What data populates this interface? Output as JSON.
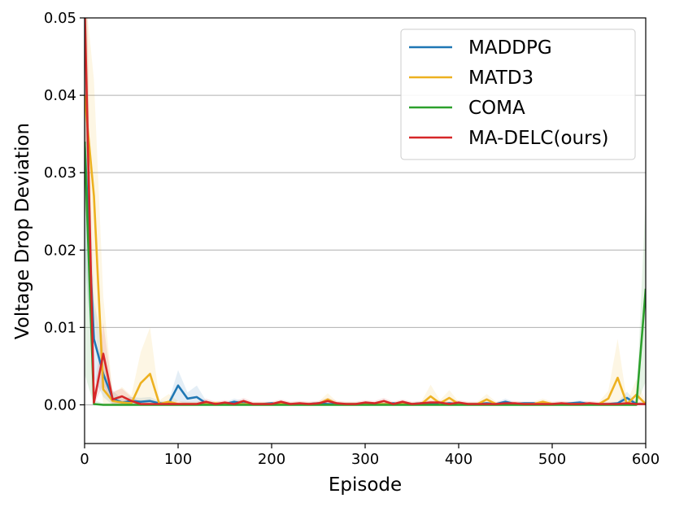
{
  "chart_data": {
    "type": "line",
    "title": "",
    "xlabel": "Episode",
    "ylabel": "Voltage Drop Deviation",
    "xlim": [
      0,
      600
    ],
    "ylim": [
      -0.005,
      0.05
    ],
    "xticks": [
      0,
      100,
      200,
      300,
      400,
      500,
      600
    ],
    "xtick_labels": [
      "0",
      "100",
      "200",
      "300",
      "400",
      "500",
      "600"
    ],
    "yticks": [
      0.0,
      0.01,
      0.02,
      0.03,
      0.04,
      0.05
    ],
    "ytick_labels": [
      "0.00",
      "0.01",
      "0.02",
      "0.03",
      "0.04",
      "0.05"
    ],
    "grid": "horizontal",
    "legend_position": "top-right",
    "x": [
      0,
      10,
      20,
      30,
      40,
      50,
      60,
      70,
      80,
      90,
      100,
      110,
      120,
      130,
      140,
      150,
      160,
      170,
      180,
      190,
      200,
      210,
      220,
      230,
      240,
      250,
      260,
      270,
      280,
      290,
      300,
      310,
      320,
      330,
      340,
      350,
      360,
      370,
      380,
      390,
      400,
      410,
      420,
      430,
      440,
      450,
      460,
      470,
      480,
      490,
      500,
      510,
      520,
      530,
      540,
      550,
      560,
      570,
      580,
      590,
      600
    ],
    "series": [
      {
        "name": "MADDPG",
        "color": "#1f77b4",
        "values": [
          0.034,
          0.0085,
          0.004,
          0.0008,
          0.0003,
          0.0005,
          0.0004,
          0.0005,
          0.0002,
          0.0002,
          0.0025,
          0.0008,
          0.001,
          0.0002,
          0.0001,
          0.0001,
          0.0004,
          0.0002,
          0.0001,
          0.0001,
          0.0002,
          0.0001,
          0.0001,
          0.0001,
          0.0001,
          0.0002,
          0.0001,
          0.0001,
          0.0001,
          0.0001,
          0.0002,
          0.0001,
          0.0001,
          0.0002,
          0.0001,
          0.0001,
          0.0002,
          0.0001,
          0.0001,
          0.0002,
          0.0001,
          0.0001,
          0.0001,
          0.0002,
          0.0001,
          0.0004,
          0.0001,
          0.0002,
          0.0002,
          0.0001,
          0.0001,
          0.0001,
          0.0002,
          0.0003,
          0.0001,
          0.0001,
          0.0001,
          0.0002,
          0.0009,
          0.0001,
          0.0001
        ],
        "band": [
          0.015,
          0.005,
          0.003,
          0.001,
          0.0005,
          0.0005,
          0.0005,
          0.0005,
          0.0003,
          0.0003,
          0.002,
          0.0008,
          0.0015,
          0.0003,
          0.0002,
          0.0002,
          0.0004,
          0.0003,
          0.0002,
          0.0002,
          0.0002,
          0.0002,
          0.0002,
          0.0002,
          0.0002,
          0.0002,
          0.0002,
          0.0002,
          0.0002,
          0.0002,
          0.0002,
          0.0002,
          0.0002,
          0.0002,
          0.0002,
          0.0002,
          0.0002,
          0.0002,
          0.0002,
          0.0002,
          0.0002,
          0.0002,
          0.0002,
          0.0002,
          0.0002,
          0.0004,
          0.0002,
          0.0002,
          0.0002,
          0.0002,
          0.0002,
          0.0002,
          0.0002,
          0.0003,
          0.0002,
          0.0002,
          0.0002,
          0.0002,
          0.0008,
          0.0002,
          0.0002
        ]
      },
      {
        "name": "MATD3",
        "color": "#edb120",
        "values": [
          0.04,
          0.027,
          0.002,
          0.0005,
          0.0003,
          0.0002,
          0.0028,
          0.004,
          0.0001,
          0.0004,
          0.0001,
          0.0001,
          0.0001,
          0.0001,
          0.0002,
          0.0001,
          0.0001,
          0.0001,
          0.0001,
          0.0001,
          0.0001,
          0.0002,
          0.0001,
          0.0001,
          0.0001,
          0.0001,
          0.0007,
          0.0001,
          0.0001,
          0.0001,
          0.0001,
          0.0001,
          0.0001,
          0.0001,
          0.0001,
          0.0001,
          0.0001,
          0.0011,
          0.0002,
          0.0009,
          0.0001,
          0.0001,
          0.0001,
          0.0007,
          0.0001,
          0.0001,
          0.0001,
          0.0001,
          0.0001,
          0.0004,
          0.0001,
          0.0001,
          0.0001,
          0.0001,
          0.0001,
          0.0001,
          0.0008,
          0.0035,
          0.0001,
          0.0013,
          0.0001
        ],
        "band": [
          0.014,
          0.015,
          0.012,
          0.001,
          0.002,
          0.001,
          0.004,
          0.006,
          0.0005,
          0.001,
          0.0004,
          0.0003,
          0.0003,
          0.0003,
          0.0003,
          0.0003,
          0.0003,
          0.0003,
          0.0003,
          0.0003,
          0.0003,
          0.0003,
          0.0003,
          0.0003,
          0.0003,
          0.0003,
          0.0008,
          0.0003,
          0.0003,
          0.0003,
          0.0003,
          0.0003,
          0.0003,
          0.0003,
          0.0003,
          0.0003,
          0.0003,
          0.0015,
          0.0004,
          0.001,
          0.0003,
          0.0003,
          0.0003,
          0.0007,
          0.0003,
          0.0003,
          0.0003,
          0.0003,
          0.0003,
          0.0004,
          0.0003,
          0.0003,
          0.0003,
          0.0003,
          0.0003,
          0.0003,
          0.001,
          0.005,
          0.0003,
          0.002,
          0.0003
        ]
      },
      {
        "name": "COMA",
        "color": "#2ca02c",
        "values": [
          0.034,
          0.0001,
          0.0,
          0.0,
          0.0,
          0.0,
          0.0,
          0.0,
          0.0,
          0.0,
          0.0,
          0.0,
          0.0,
          0.0,
          0.0,
          0.0,
          0.0,
          0.0,
          0.0,
          0.0,
          0.0,
          0.0,
          0.0,
          0.0,
          0.0,
          0.0,
          0.0,
          0.0,
          0.0,
          0.0,
          0.0,
          0.0,
          0.0,
          0.0,
          0.0,
          0.0,
          0.0,
          0.0,
          0.0,
          0.0,
          0.0,
          0.0,
          0.0,
          0.0,
          0.0,
          0.0,
          0.0,
          0.0,
          0.0,
          0.0,
          0.0,
          0.0,
          0.0,
          0.0,
          0.0,
          0.0,
          0.0,
          0.0,
          0.0,
          0.0,
          0.015
        ],
        "band": [
          0.03,
          0.0005,
          0.0002,
          0.0002,
          0.0002,
          0.0002,
          0.0002,
          0.0002,
          0.0002,
          0.0002,
          0.0002,
          0.0002,
          0.0002,
          0.0002,
          0.0002,
          0.0002,
          0.0002,
          0.0002,
          0.0002,
          0.0002,
          0.0002,
          0.0002,
          0.0002,
          0.0002,
          0.0002,
          0.0002,
          0.0002,
          0.0002,
          0.0002,
          0.0002,
          0.0002,
          0.0002,
          0.0002,
          0.0002,
          0.0002,
          0.0002,
          0.0002,
          0.0002,
          0.0002,
          0.0002,
          0.0002,
          0.0002,
          0.0002,
          0.0002,
          0.0002,
          0.0002,
          0.0002,
          0.0002,
          0.0002,
          0.0002,
          0.0002,
          0.0002,
          0.0002,
          0.0002,
          0.0002,
          0.0002,
          0.0002,
          0.0002,
          0.0002,
          0.0002,
          0.012
        ]
      },
      {
        "name": "MA-DELC(ours)",
        "color": "#d62728",
        "values": [
          0.052,
          0.0003,
          0.0066,
          0.0007,
          0.0011,
          0.0005,
          0.0001,
          0.0001,
          0.0001,
          0.0001,
          0.0001,
          0.0001,
          0.0001,
          0.0004,
          0.0001,
          0.0003,
          0.0001,
          0.0005,
          0.0001,
          0.0001,
          0.0001,
          0.0004,
          0.0001,
          0.0002,
          0.0001,
          0.0002,
          0.0005,
          0.0002,
          0.0001,
          0.0001,
          0.0003,
          0.0002,
          0.0005,
          0.0001,
          0.0004,
          0.0001,
          0.0002,
          0.0003,
          0.0003,
          0.0001,
          0.0003,
          0.0001,
          0.0001,
          0.0001,
          0.0001,
          0.0002,
          0.0002,
          0.0001,
          0.0001,
          0.0001,
          0.0001,
          0.0002,
          0.0001,
          0.0001,
          0.0002,
          0.0001,
          0.0001,
          0.0001,
          0.0002,
          0.0001,
          0.0001
        ],
        "band": [
          0.02,
          0.001,
          0.004,
          0.001,
          0.001,
          0.0005,
          0.0003,
          0.0003,
          0.0003,
          0.0003,
          0.0003,
          0.0003,
          0.0003,
          0.0004,
          0.0003,
          0.0003,
          0.0003,
          0.0004,
          0.0003,
          0.0003,
          0.0003,
          0.0003,
          0.0003,
          0.0003,
          0.0003,
          0.0003,
          0.0004,
          0.0003,
          0.0003,
          0.0003,
          0.0003,
          0.0003,
          0.0004,
          0.0003,
          0.0003,
          0.0003,
          0.0003,
          0.0003,
          0.0003,
          0.0003,
          0.0003,
          0.0003,
          0.0003,
          0.0003,
          0.0003,
          0.0003,
          0.0003,
          0.0003,
          0.0003,
          0.0003,
          0.0003,
          0.0003,
          0.0003,
          0.0003,
          0.0003,
          0.0003,
          0.0003,
          0.0003,
          0.0003,
          0.0003,
          0.0003
        ]
      }
    ]
  }
}
